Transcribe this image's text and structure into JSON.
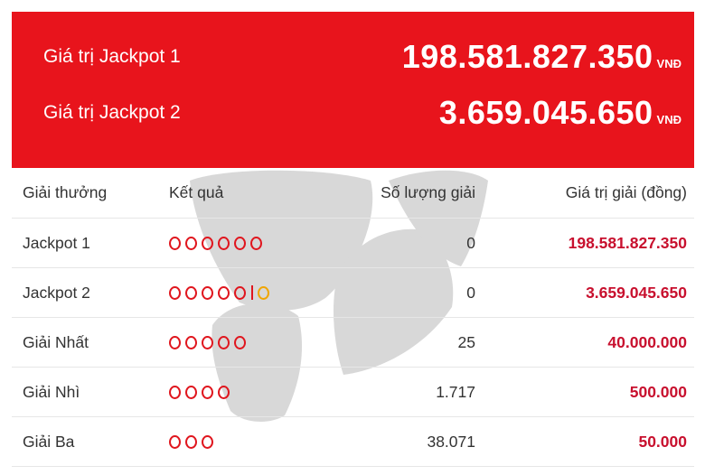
{
  "jackpot_banner": {
    "background": "#e8141c",
    "rows": [
      {
        "label": "Giá trị Jackpot 1",
        "value": "198.581.827.350",
        "currency": "VNĐ"
      },
      {
        "label": "Giá trị Jackpot 2",
        "value": "3.659.045.650",
        "currency": "VNĐ"
      }
    ]
  },
  "prize_table": {
    "headers": {
      "prize": "Giải thưởng",
      "result": "Kết quả",
      "count": "Số lượng giải",
      "value": "Giá trị giải (đồng)"
    },
    "rows": [
      {
        "prize": "Jackpot 1",
        "balls": 6,
        "special_ball": false,
        "count": "0",
        "value": "198.581.827.350"
      },
      {
        "prize": "Jackpot 2",
        "balls": 5,
        "special_ball": true,
        "count": "0",
        "value": "3.659.045.650"
      },
      {
        "prize": "Giải Nhất",
        "balls": 5,
        "special_ball": false,
        "count": "25",
        "value": "40.000.000"
      },
      {
        "prize": "Giải Nhì",
        "balls": 4,
        "special_ball": false,
        "count": "1.717",
        "value": "500.000"
      },
      {
        "prize": "Giải Ba",
        "balls": 3,
        "special_ball": false,
        "count": "38.071",
        "value": "50.000"
      }
    ]
  },
  "colors": {
    "accent_red": "#e0161e",
    "value_red": "#c8102e",
    "special_gold": "#f0a500"
  }
}
